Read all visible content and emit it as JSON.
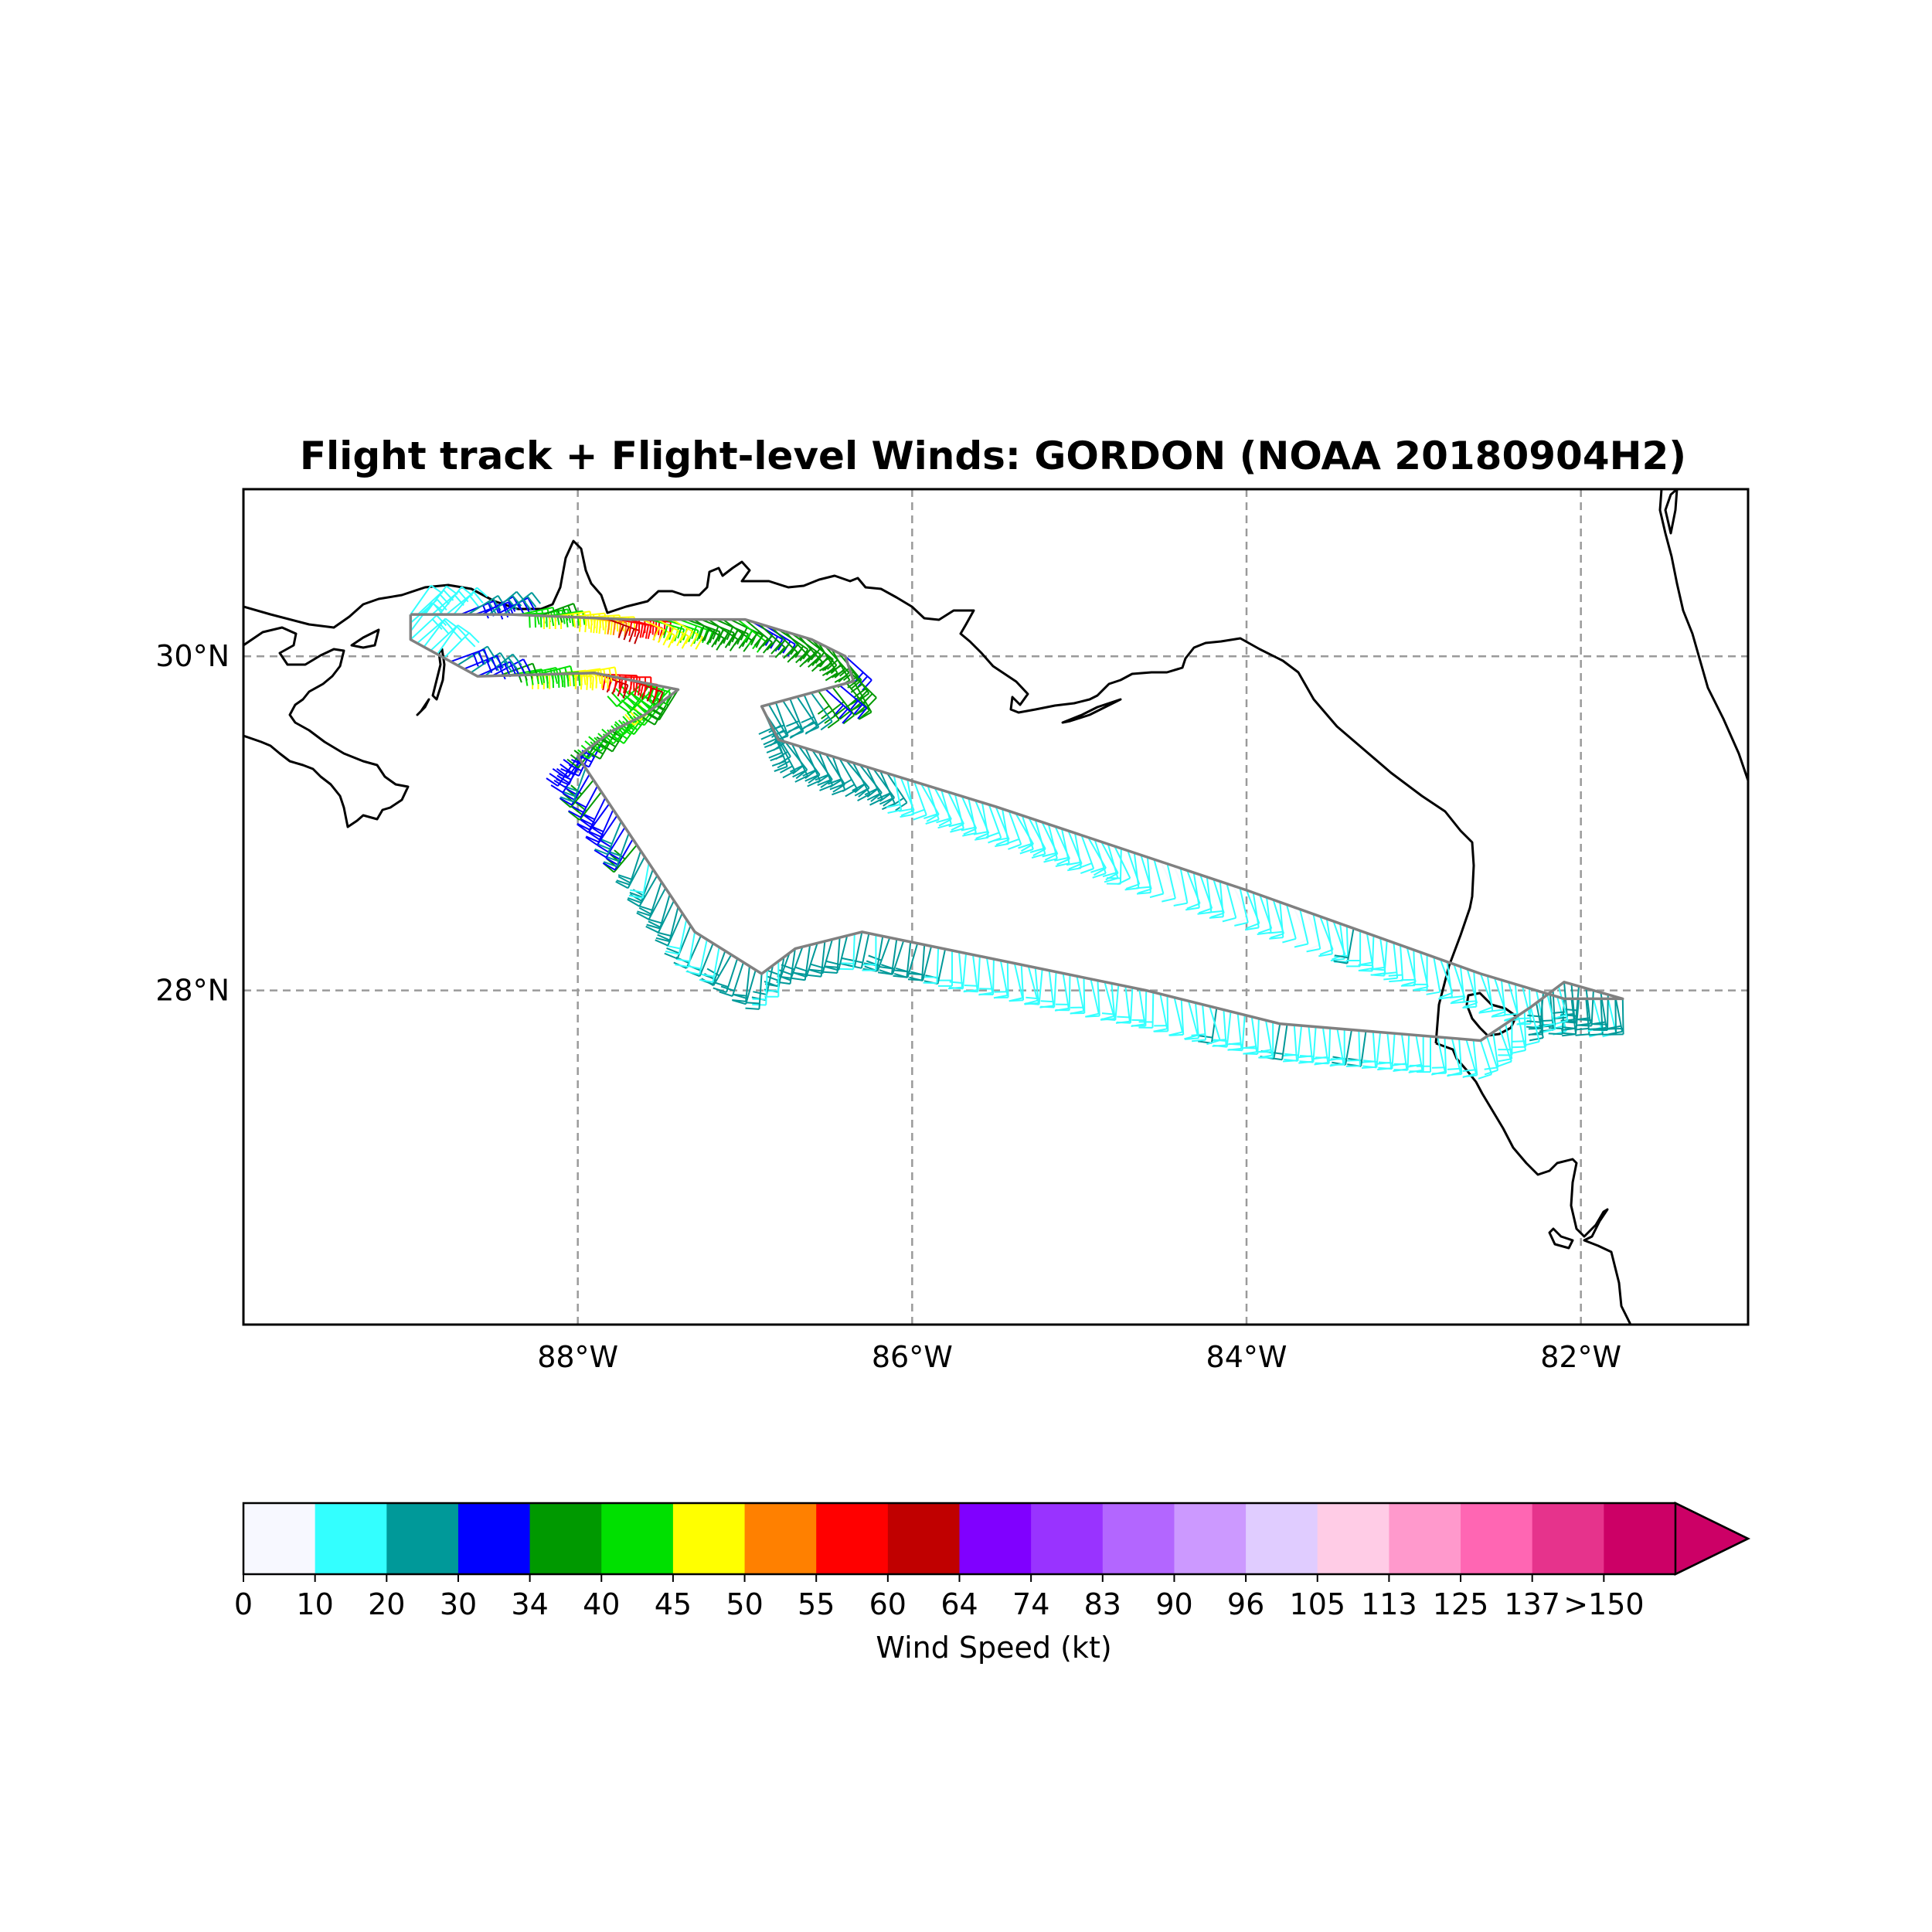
{
  "title": "Flight track + Flight-level Winds: GORDON (NOAA 20180904H2)",
  "map": {
    "lon_range": [
      -90.0,
      -81.0
    ],
    "lat_range": [
      26.0,
      31.0
    ],
    "lon_ticks": [
      {
        "value": -88,
        "label": "88°W"
      },
      {
        "value": -86,
        "label": "86°W"
      },
      {
        "value": -84,
        "label": "84°W"
      },
      {
        "value": -82,
        "label": "82°W"
      }
    ],
    "lat_ticks": [
      {
        "value": 30,
        "label": "30°N"
      },
      {
        "value": 28,
        "label": "28°N"
      }
    ],
    "gridlines": "dashed",
    "track_color": "#808080"
  },
  "chart_data": {
    "type": "map",
    "track": [
      [
        -89.0,
        30.25
      ],
      [
        -88.4,
        30.25
      ],
      [
        -87.7,
        30.22
      ],
      [
        -87.0,
        30.22
      ],
      [
        -86.6,
        30.1
      ],
      [
        -86.4,
        30.0
      ],
      [
        -86.35,
        29.85
      ],
      [
        -86.9,
        29.7
      ],
      [
        -86.8,
        29.5
      ],
      [
        -85.5,
        29.1
      ],
      [
        -84.0,
        28.6
      ],
      [
        -82.6,
        28.1
      ],
      [
        -82.1,
        27.95
      ],
      [
        -81.75,
        27.95
      ],
      [
        -82.1,
        28.05
      ],
      [
        -82.3,
        27.9
      ],
      [
        -82.6,
        27.7
      ],
      [
        -83.8,
        27.8
      ],
      [
        -84.6,
        28.0
      ],
      [
        -86.3,
        28.35
      ],
      [
        -86.7,
        28.25
      ],
      [
        -86.9,
        28.1
      ],
      [
        -87.3,
        28.35
      ],
      [
        -87.6,
        28.8
      ],
      [
        -88.0,
        29.4
      ],
      [
        -87.8,
        29.55
      ],
      [
        -87.6,
        29.65
      ],
      [
        -87.4,
        29.8
      ],
      [
        -87.9,
        29.9
      ],
      [
        -88.6,
        29.88
      ],
      [
        -89.0,
        30.1
      ],
      [
        -89.0,
        30.25
      ]
    ],
    "wind_samples": [
      {
        "lon": -88.9,
        "lat": 30.2,
        "kt": 15,
        "dir": 45
      },
      {
        "lon": -88.6,
        "lat": 30.15,
        "kt": 30,
        "dir": 60
      },
      {
        "lon": -88.3,
        "lat": 30.12,
        "kt": 42,
        "dir": 80
      },
      {
        "lon": -88.0,
        "lat": 30.1,
        "kt": 48,
        "dir": 90
      },
      {
        "lon": -87.8,
        "lat": 30.05,
        "kt": 58,
        "dir": 100
      },
      {
        "lon": -87.5,
        "lat": 30.0,
        "kt": 44,
        "dir": 110
      },
      {
        "lon": -87.2,
        "lat": 30.05,
        "kt": 38,
        "dir": 120
      },
      {
        "lon": -86.8,
        "lat": 30.1,
        "kt": 36,
        "dir": 130
      },
      {
        "lon": -86.5,
        "lat": 30.0,
        "kt": 36,
        "dir": 140
      },
      {
        "lon": -86.7,
        "lat": 29.6,
        "kt": 25,
        "dir": 150
      },
      {
        "lon": -85.5,
        "lat": 29.1,
        "kt": 15,
        "dir": 160
      },
      {
        "lon": -84.0,
        "lat": 28.6,
        "kt": 12,
        "dir": 165
      },
      {
        "lon": -82.5,
        "lat": 28.1,
        "kt": 14,
        "dir": 170
      },
      {
        "lon": -82.0,
        "lat": 27.9,
        "kt": 22,
        "dir": 175
      },
      {
        "lon": -83.5,
        "lat": 27.8,
        "kt": 18,
        "dir": 180
      },
      {
        "lon": -85.0,
        "lat": 28.1,
        "kt": 14,
        "dir": 175
      },
      {
        "lon": -86.5,
        "lat": 28.3,
        "kt": 22,
        "dir": 190
      },
      {
        "lon": -87.4,
        "lat": 28.6,
        "kt": 22,
        "dir": 200
      },
      {
        "lon": -87.8,
        "lat": 29.2,
        "kt": 32,
        "dir": 210
      },
      {
        "lon": -87.5,
        "lat": 29.7,
        "kt": 42,
        "dir": 220
      }
    ]
  },
  "colorbar": {
    "label": "Wind Speed (kt)",
    "tick_labels": [
      "0",
      "10",
      "20",
      "30",
      "34",
      "40",
      "45",
      "50",
      "55",
      "60",
      "64",
      "74",
      "83",
      "90",
      "96",
      "105",
      "113",
      "125",
      "137",
      ">150"
    ],
    "colors": [
      "#f7f8ff",
      "#33ffff",
      "#009999",
      "#0000ff",
      "#009900",
      "#00e000",
      "#ffff00",
      "#ff8000",
      "#ff0000",
      "#c00000",
      "#8000ff",
      "#9933ff",
      "#b366ff",
      "#cc99ff",
      "#e0ccff",
      "#ffcce6",
      "#ff99cc",
      "#ff66b3",
      "#e6338c",
      "#cc0066"
    ],
    "extend_color": "#cc0066"
  }
}
